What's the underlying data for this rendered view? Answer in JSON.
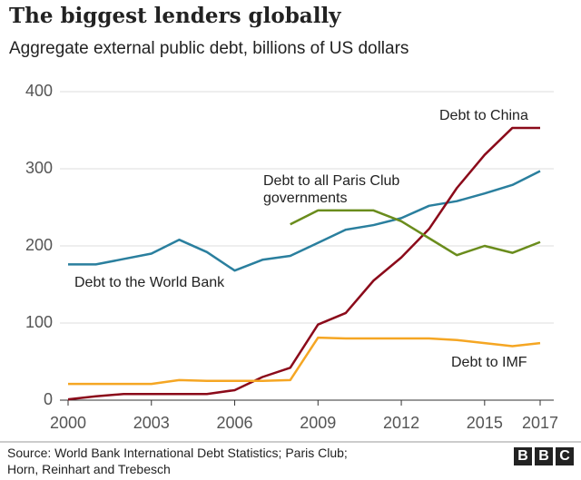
{
  "chart_data": {
    "type": "line",
    "title": "The biggest lenders globally",
    "subtitle": "Aggregate external public debt, billions of US dollars",
    "x": [
      2000,
      2001,
      2002,
      2003,
      2004,
      2005,
      2006,
      2007,
      2008,
      2009,
      2010,
      2011,
      2012,
      2013,
      2014,
      2015,
      2016,
      2017
    ],
    "series": [
      {
        "name": "Debt to the World Bank",
        "color": "#2a7f9e",
        "values": [
          176,
          176,
          183,
          190,
          208,
          192,
          168,
          182,
          187,
          204,
          221,
          227,
          236,
          252,
          258,
          268,
          279,
          297
        ]
      },
      {
        "name": "Debt to China",
        "color": "#8b0a1a",
        "values": [
          1,
          5,
          8,
          8,
          8,
          8,
          13,
          30,
          42,
          98,
          113,
          155,
          185,
          222,
          275,
          318,
          353,
          353
        ]
      },
      {
        "name": "Debt to all Paris Club governments",
        "color": "#6a8c1c",
        "values": [
          null,
          null,
          null,
          null,
          null,
          null,
          null,
          null,
          228,
          246,
          246,
          246,
          232,
          210,
          188,
          200,
          191,
          205
        ]
      },
      {
        "name": "Debt to IMF",
        "color": "#f5a623",
        "values": [
          21,
          21,
          21,
          21,
          26,
          25,
          25,
          25,
          26,
          81,
          80,
          80,
          80,
          80,
          78,
          74,
          70,
          74
        ]
      }
    ],
    "xlim": [
      2000,
      2017
    ],
    "xticks": [
      2000,
      2003,
      2006,
      2009,
      2012,
      2015,
      2017
    ],
    "ylim": [
      0,
      400
    ],
    "yticks": [
      0,
      100,
      200,
      300,
      400
    ],
    "grid": true,
    "source": [
      "Source: World Bank International Debt Statistics; Paris Club;",
      "Horn, Reinhart and Trebesch"
    ],
    "logo": [
      "B",
      "B",
      "C"
    ]
  }
}
